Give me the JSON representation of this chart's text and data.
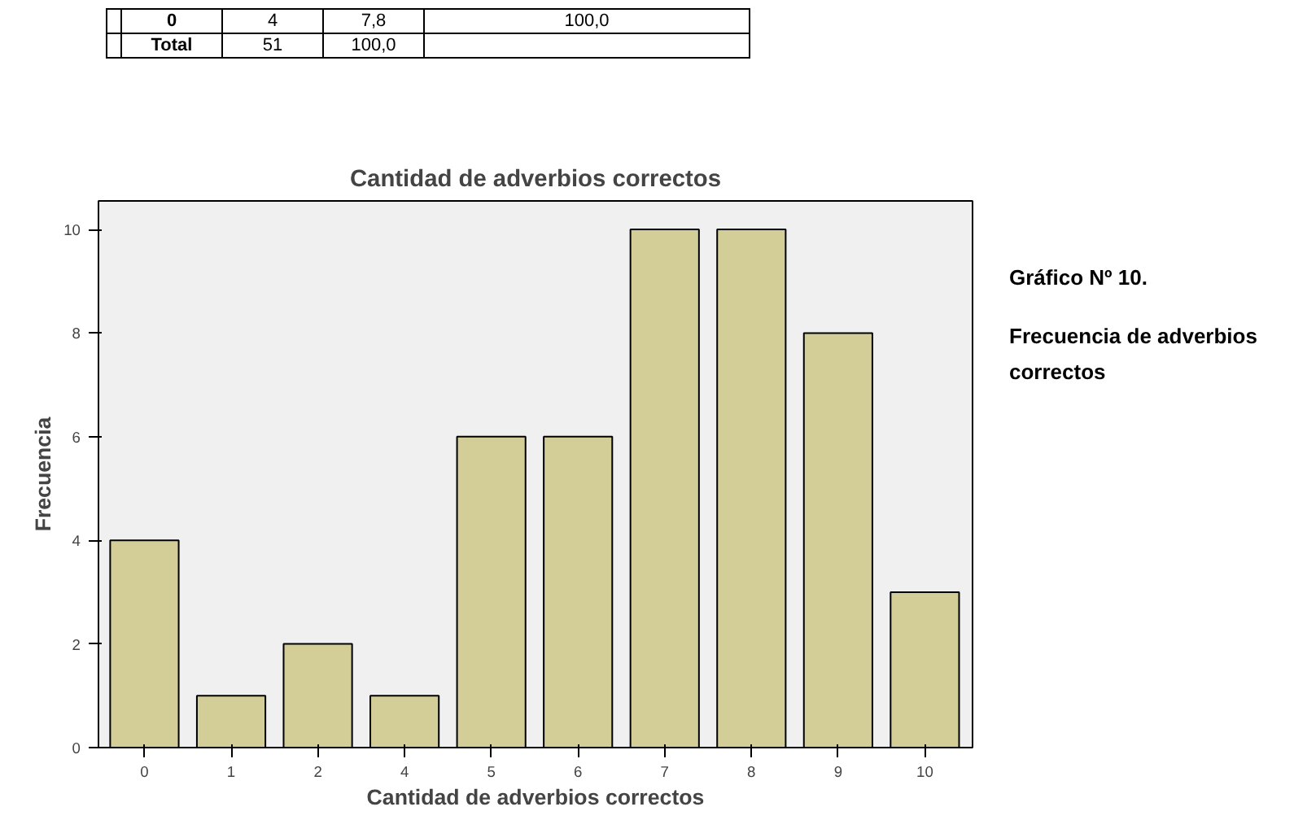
{
  "chart_data": {
    "type": "bar",
    "title": "Cantidad de adverbios correctos",
    "xlabel": "Cantidad de adverbios correctos",
    "ylabel": "Frecuencia",
    "categories": [
      "0",
      "1",
      "2",
      "4",
      "5",
      "6",
      "7",
      "8",
      "9",
      "10"
    ],
    "values": [
      4,
      1,
      2,
      1,
      6,
      6,
      10,
      10,
      8,
      3
    ],
    "color": "#d3ce98",
    "ylim": [
      0,
      10.55
    ],
    "yticks": [
      0,
      2,
      4,
      6,
      8,
      10
    ],
    "grid": false,
    "annotations": [
      "0",
      "4",
      "7,8",
      "100,0",
      "Total",
      "51",
      "100,0",
      "Gráfico Nº 10.",
      "Frecuencia de adverbios correctos"
    ]
  }
}
